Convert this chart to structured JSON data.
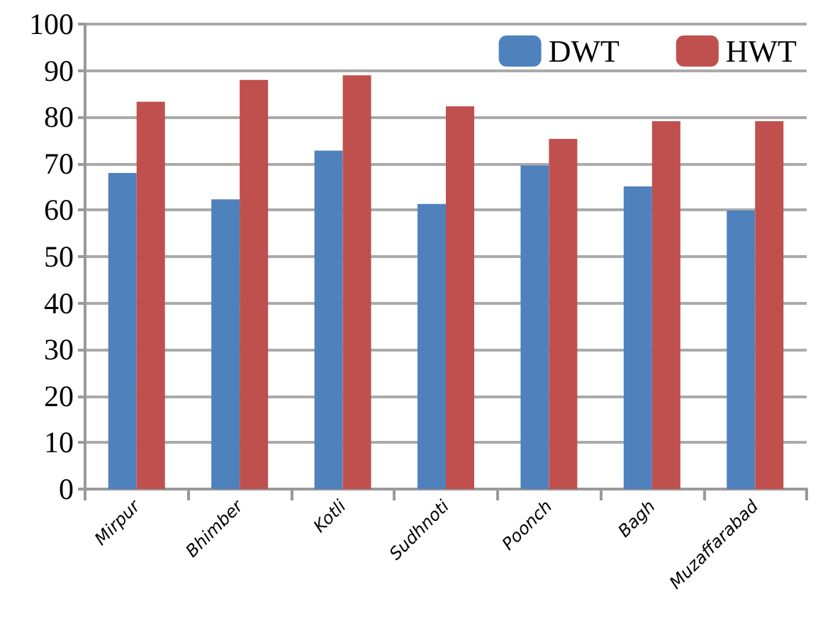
{
  "chart_data": {
    "type": "bar",
    "categories": [
      "Mirpur",
      "Bhimber",
      "Kotli",
      "Sudhnoti",
      "Poonch",
      "Bagh",
      "Muzaffarabad"
    ],
    "series": [
      {
        "name": "DWT",
        "color": "#4f81bd",
        "values": [
          68,
          62.3,
          72.8,
          61.3,
          69.6,
          65.1,
          59.9
        ]
      },
      {
        "name": "HWT",
        "color": "#c0504d",
        "values": [
          83.3,
          88,
          89,
          82.3,
          75.3,
          79.1,
          79.1
        ]
      }
    ],
    "ylim": [
      0,
      100
    ],
    "yticks": [
      0,
      10,
      20,
      30,
      40,
      50,
      60,
      70,
      80,
      90,
      100
    ],
    "grid": "y",
    "legend": "top right"
  }
}
